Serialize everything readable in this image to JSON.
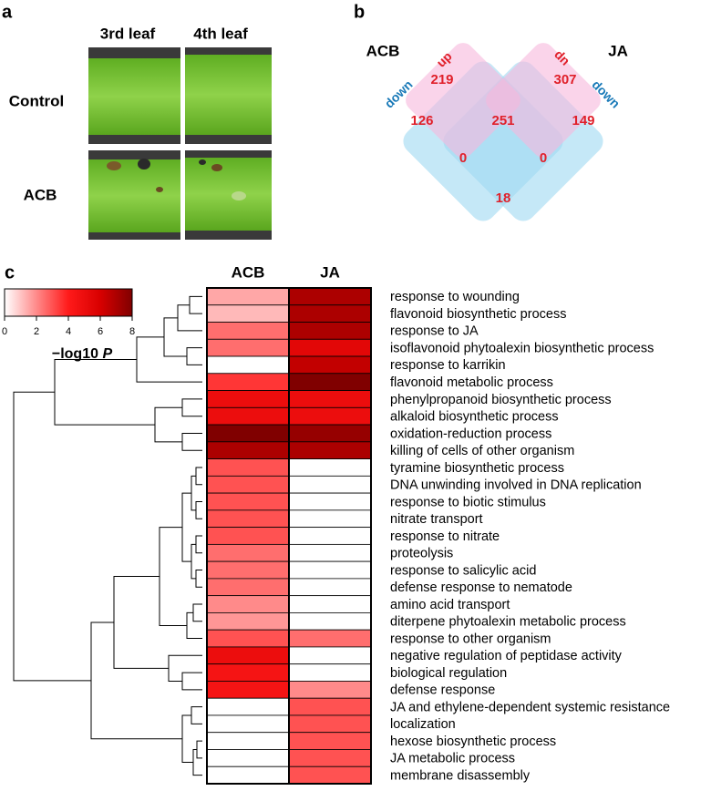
{
  "panel_a": {
    "label": "a",
    "columns": [
      "3rd leaf",
      "4th leaf"
    ],
    "rows": [
      "Control",
      "ACB"
    ]
  },
  "panel_b": {
    "label": "b",
    "sets": [
      "ACB",
      "JA"
    ],
    "up": "up",
    "down": "down",
    "regions": [
      219,
      307,
      126,
      251,
      149,
      0,
      0,
      18
    ]
  },
  "chart_data": {
    "type": "heatmap",
    "label": "c",
    "columns": [
      "ACB",
      "JA"
    ],
    "rows": [
      "response to wounding",
      "flavonoid biosynthetic process",
      "response to JA",
      "isoflavonoid phytoalexin biosynthetic process",
      "response to karrikin",
      "flavonoid metabolic process",
      "phenylpropanoid biosynthetic process",
      "alkaloid biosynthetic process",
      "oxidation-reduction process",
      "killing of cells of other organism",
      "tyramine biosynthetic process",
      "DNA unwinding involved in DNA replication",
      "response to biotic stimulus",
      "nitrate transport",
      "response to nitrate",
      "proteolysis",
      "response to salicylic acid",
      "defense response to nematode",
      "amino acid transport",
      "diterpene phytoalexin metabolic process",
      "response to other organism",
      "negative regulation of peptidase activity",
      "biological regulation",
      "defense response",
      "JA and ethylene-dependent systemic resistance",
      "localization",
      "hexose biosynthetic process",
      "JA metabolic process",
      "membrane disassembly"
    ],
    "values": [
      [
        1.5,
        7
      ],
      [
        1.2,
        7
      ],
      [
        2.5,
        7
      ],
      [
        2.5,
        5.5
      ],
      [
        0,
        6.5
      ],
      [
        3.5,
        8
      ],
      [
        5,
        5
      ],
      [
        5,
        5
      ],
      [
        8,
        7.5
      ],
      [
        7,
        7
      ],
      [
        3,
        0
      ],
      [
        3,
        0
      ],
      [
        3,
        0
      ],
      [
        3,
        0
      ],
      [
        3,
        0
      ],
      [
        2.5,
        0
      ],
      [
        2.5,
        0
      ],
      [
        2.5,
        0
      ],
      [
        2,
        0
      ],
      [
        1.8,
        0
      ],
      [
        3,
        2.5
      ],
      [
        5,
        0
      ],
      [
        4.5,
        0
      ],
      [
        4.5,
        2
      ],
      [
        0,
        3
      ],
      [
        0,
        3
      ],
      [
        0,
        3
      ],
      [
        0,
        3
      ],
      [
        0,
        3
      ]
    ],
    "colormap": [
      "#ffffff",
      "#ff8a8a",
      "#ff1a1a",
      "#d80000",
      "#800000"
    ],
    "colorbar": {
      "lim": [
        0,
        8
      ],
      "ticks": [
        0,
        2,
        4,
        6,
        8
      ],
      "label": "−log10",
      "label_italic": "P"
    }
  }
}
